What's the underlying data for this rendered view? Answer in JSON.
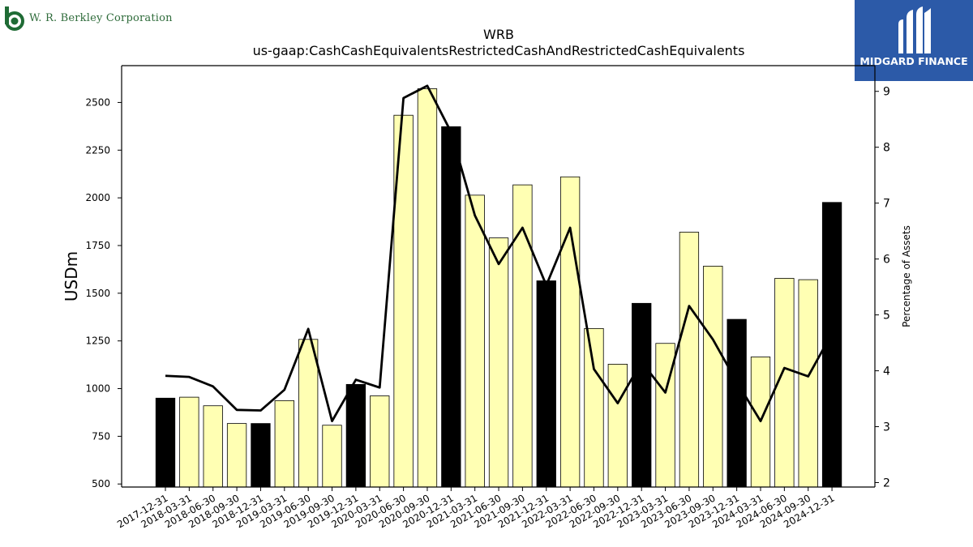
{
  "chart_data": {
    "type": "bar+line",
    "title": "WRB",
    "subtitle": "us-gaap:CashCashEquivalentsRestrictedCashAndRestrictedCashEquivalents",
    "ylabel": "USDm",
    "y2label": "Percentage of Assets",
    "ylim": [
      484,
      2693
    ],
    "y2lim": [
      1.92,
      9.46
    ],
    "yticks": [
      500,
      750,
      1000,
      1250,
      1500,
      1750,
      2000,
      2250,
      2500
    ],
    "y2ticks": [
      2,
      3,
      4,
      5,
      6,
      7,
      8,
      9
    ],
    "categories": [
      "2017-12-31",
      "2018-03-31",
      "2018-06-30",
      "2018-09-30",
      "2018-12-31",
      "2019-03-31",
      "2019-06-30",
      "2019-09-30",
      "2019-12-31",
      "2020-03-31",
      "2020-06-30",
      "2020-09-30",
      "2020-12-31",
      "2021-03-31",
      "2021-06-30",
      "2021-09-30",
      "2021-12-31",
      "2022-03-31",
      "2022-06-30",
      "2022-09-30",
      "2022-12-31",
      "2023-03-31",
      "2023-06-30",
      "2023-09-30",
      "2023-12-31",
      "2024-03-31",
      "2024-06-30",
      "2024-09-30",
      "2024-12-31"
    ],
    "series": [
      {
        "type": "bar",
        "values": [
          950,
          955,
          910,
          817,
          817,
          937,
          1258,
          808,
          1022,
          962,
          2433,
          2572,
          2373,
          2014,
          1790,
          2068,
          1565,
          2110,
          1315,
          1128,
          1447,
          1237,
          1820,
          1642,
          1363,
          1166,
          1578,
          1571,
          1976
        ],
        "colors": [
          "#000000",
          "#ffffb3",
          "#ffffb3",
          "#ffffb3",
          "#000000",
          "#ffffb3",
          "#ffffb3",
          "#ffffb3",
          "#000000",
          "#ffffb3",
          "#ffffb3",
          "#ffffb3",
          "#000000",
          "#ffffb3",
          "#ffffb3",
          "#ffffb3",
          "#000000",
          "#ffffb3",
          "#ffffb3",
          "#ffffb3",
          "#000000",
          "#ffffb3",
          "#ffffb3",
          "#ffffb3",
          "#000000",
          "#ffffb3",
          "#ffffb3",
          "#ffffb3",
          "#000000"
        ]
      },
      {
        "type": "line",
        "axis": "y2",
        "color": "#000000",
        "values": [
          3.91,
          3.89,
          3.72,
          3.3,
          3.29,
          3.66,
          4.75,
          3.1,
          3.84,
          3.7,
          8.88,
          9.1,
          8.27,
          6.78,
          5.91,
          6.56,
          5.53,
          6.56,
          4.03,
          3.42,
          4.16,
          3.61,
          5.16,
          4.56,
          3.8,
          3.1,
          4.05,
          3.9,
          4.67
        ]
      }
    ]
  },
  "branding": {
    "left_logo_text": "W. R. Berkley Corporation",
    "right_logo_text": "MIDGARD FINANCE",
    "left_logo_color": "#2e6b3a",
    "right_logo_bg": "#2c5aa8"
  }
}
